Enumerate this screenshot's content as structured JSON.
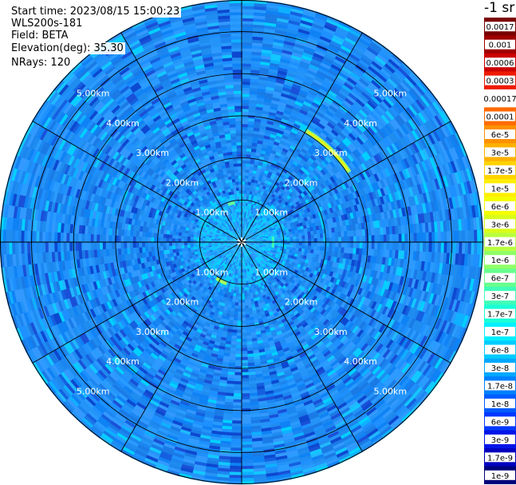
{
  "info": {
    "start_time": "Start time: 2023/08/15 15:00:23",
    "instrument": "WLS200s-181",
    "field": "Field: BETA",
    "elevation": "Elevation(deg): 35.30",
    "nrays": "NRays: 120"
  },
  "chart_data": {
    "type": "heatmap",
    "projection": "polar (PPI scan)",
    "field": "BETA",
    "elevation_deg": 35.3,
    "n_rays": 120,
    "range_rings_km": [
      1,
      2,
      3,
      4,
      5
    ],
    "range_ring_labels": [
      "1.00km",
      "2.00km",
      "3.00km",
      "4.00km",
      "5.00km"
    ],
    "spokes": 12,
    "colorscale": "log",
    "colorbar_unit": "-1 sr",
    "colorbar_ticks": [
      "0.0017",
      "0.001",
      "0.0006",
      "0.0003",
      "0.00017",
      "0.0001",
      "6e-5",
      "3e-5",
      "1.7e-5",
      "1e-5",
      "6e-6",
      "3e-6",
      "1.7e-6",
      "1e-6",
      "6e-7",
      "3e-7",
      "1.7e-7",
      "1e-7",
      "6e-8",
      "3e-8",
      "1.7e-8",
      "1e-8",
      "6e-9",
      "3e-9",
      "1.7e-9",
      "1e-9"
    ],
    "colorbar_colors": [
      "#7a0000",
      "#a00000",
      "#cc0000",
      "#ee1a00",
      "#ffffff",
      "#ff6a00",
      "#ff9000",
      "#ffb000",
      "#ffd400",
      "#ffee00",
      "#f5ff00",
      "#d8ff1a",
      "#b8ff40",
      "#8fff66",
      "#66ff8f",
      "#40ffb8",
      "#1affd8",
      "#00f0ff",
      "#00ccff",
      "#00a8ff",
      "#0080ff",
      "#005cff",
      "#0038ff",
      "#0014e8",
      "#0000c0",
      "#00007a"
    ],
    "dominant_color": "#1e90ff"
  }
}
